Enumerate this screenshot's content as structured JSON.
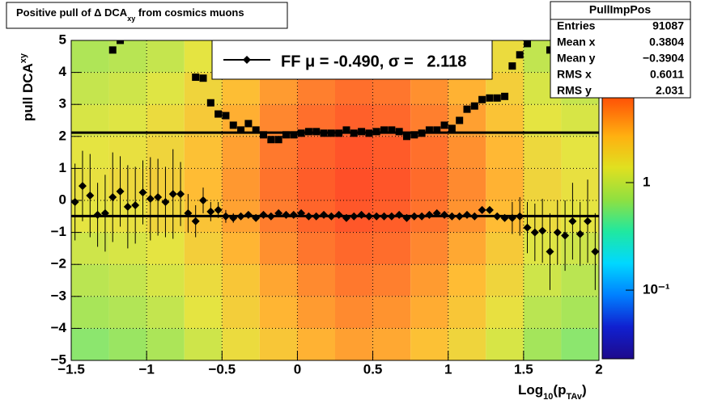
{
  "chart_data": {
    "type": "profile2d",
    "title": {
      "text": "Positive pull of Δ DCA",
      "sub": "xy",
      "rest": " from cosmics muons"
    },
    "x_label": {
      "a": "Log",
      "sub1": "10",
      "b": "(p",
      "sub2": "TAv",
      "c": ")"
    },
    "y_label": {
      "a": "pull DCA",
      "sub": "xy"
    },
    "xlim": [
      -1.5,
      2
    ],
    "ylim": [
      -5,
      5
    ],
    "xticks": [
      {
        "value": -1.5,
        "label": "−1.5"
      },
      {
        "value": -1,
        "label": "−1"
      },
      {
        "value": -0.5,
        "label": "−0.5"
      },
      0,
      0.5,
      1,
      1.5,
      2
    ],
    "yticks": [
      {
        "value": -5,
        "label": "−5"
      },
      {
        "value": -4,
        "label": "−4"
      },
      {
        "value": -3,
        "label": "−3"
      },
      {
        "value": -2,
        "label": "−2"
      },
      {
        "value": -1,
        "label": "−1"
      },
      0,
      1,
      2,
      3,
      4,
      5
    ],
    "grid": true,
    "heatmap": {
      "xbins": [
        -1.5,
        -1.25,
        -1,
        -0.75,
        -0.5,
        -0.25,
        0,
        0.25,
        0.5,
        0.75,
        1,
        1.25,
        1.5,
        1.75,
        2
      ],
      "ybins": [
        -5,
        -4,
        -3,
        -2,
        -1,
        0,
        1,
        2,
        3,
        4,
        5
      ],
      "z": [
        [
          0.6,
          0.66,
          0.78,
          1.1,
          1.6,
          2.3,
          3,
          3.6,
          3.3,
          2.5,
          1.8,
          1.2,
          0.72,
          0.6
        ],
        [
          0.75,
          0.83,
          0.98,
          1.4,
          2,
          2.9,
          3.8,
          4.5,
          4.1,
          3.2,
          2.3,
          1.5,
          0.9,
          0.75
        ],
        [
          0.9,
          1,
          1.2,
          1.6,
          2.3,
          3.4,
          4.5,
          5.4,
          5,
          3.8,
          2.7,
          1.8,
          1.1,
          0.9
        ],
        [
          1.1,
          1.2,
          1.4,
          2,
          2.9,
          4.2,
          5.5,
          6.6,
          6.1,
          4.6,
          3.3,
          2.2,
          1.3,
          1.1
        ],
        [
          1.4,
          1.5,
          1.8,
          2.4,
          3.5,
          5.1,
          6.8,
          8.1,
          7.4,
          5.7,
          4.1,
          2.7,
          1.6,
          1.4
        ],
        [
          1.5,
          1.7,
          2,
          2.7,
          3.9,
          5.7,
          7.5,
          9,
          8.3,
          6.3,
          4.5,
          3,
          1.8,
          1.5
        ],
        [
          1.4,
          1.5,
          1.8,
          2.5,
          3.6,
          5.3,
          7,
          8.4,
          7.7,
          5.9,
          4.2,
          2.8,
          1.7,
          1.4
        ],
        [
          1.2,
          1.3,
          1.6,
          2.2,
          3.1,
          4.6,
          6,
          7.2,
          6.6,
          5,
          3.6,
          2.4,
          1.4,
          1.2
        ],
        [
          1,
          1.1,
          1.3,
          1.8,
          2.6,
          3.8,
          5,
          6,
          5.5,
          4.2,
          3,
          2,
          1.2,
          1
        ],
        [
          0.8,
          0.88,
          1,
          1.4,
          2.1,
          3,
          4,
          4.8,
          4.4,
          3.4,
          2.4,
          1.6,
          0.96,
          0.8
        ]
      ],
      "zlim": [
        0.023,
        21
      ],
      "zlog": true,
      "zticks": [
        {
          "value": 0.1,
          "label": "10⁻¹"
        },
        1
      ],
      "palette": [
        "#1e0a8c",
        "#1020d0",
        "#0080ff",
        "#00d8ff",
        "#20e8a0",
        "#90e040",
        "#e0e020",
        "#ffb010",
        "#ff6008",
        "#ff2000",
        "#c00000"
      ]
    },
    "x": [
      -1.475,
      -1.425,
      -1.375,
      -1.325,
      -1.275,
      -1.225,
      -1.175,
      -1.125,
      -1.075,
      -1.025,
      -0.975,
      -0.925,
      -0.875,
      -0.825,
      -0.775,
      -0.725,
      -0.675,
      -0.625,
      -0.575,
      -0.525,
      -0.475,
      -0.425,
      -0.375,
      -0.325,
      -0.275,
      -0.225,
      -0.175,
      -0.125,
      -0.075,
      -0.025,
      0.025,
      0.075,
      0.125,
      0.175,
      0.225,
      0.275,
      0.325,
      0.375,
      0.425,
      0.475,
      0.525,
      0.575,
      0.625,
      0.675,
      0.725,
      0.775,
      0.825,
      0.875,
      0.925,
      0.975,
      1.025,
      1.075,
      1.125,
      1.175,
      1.225,
      1.275,
      1.325,
      1.375,
      1.425,
      1.475,
      1.525,
      1.575,
      1.625,
      1.675,
      1.725,
      1.775,
      1.825,
      1.875,
      1.925,
      1.975
    ],
    "mean": {
      "marker": "diamond",
      "color": "#000000",
      "values": [
        -0.05,
        0.45,
        0.15,
        -0.45,
        -0.4,
        0.1,
        0.28,
        -0.2,
        -0.15,
        0.25,
        0.05,
        0.1,
        -0.05,
        0.2,
        0.2,
        -0.4,
        -0.65,
        0,
        -0.35,
        -0.3,
        -0.5,
        -0.55,
        -0.5,
        -0.45,
        -0.55,
        -0.45,
        -0.5,
        -0.4,
        -0.45,
        -0.45,
        -0.4,
        -0.5,
        -0.5,
        -0.45,
        -0.5,
        -0.45,
        -0.55,
        -0.5,
        -0.45,
        -0.5,
        -0.5,
        -0.5,
        -0.5,
        -0.45,
        -0.55,
        -0.5,
        -0.5,
        -0.45,
        -0.4,
        -0.45,
        -0.5,
        -0.5,
        -0.45,
        -0.5,
        -0.3,
        -0.3,
        -0.5,
        -0.55,
        -0.55,
        -0.5,
        -0.85,
        -1,
        -0.95,
        -1.6,
        -1,
        -1.1,
        -0.65,
        -1.05,
        -0.65,
        -1.6
      ],
      "errors": [
        1.2,
        1.1,
        1.3,
        1.0,
        1.2,
        1.4,
        1.1,
        1.3,
        1.2,
        1.0,
        1.3,
        1.2,
        1.1,
        1.4,
        1.0,
        0.6,
        0.5,
        0.4,
        0.3,
        0.25,
        0.2,
        0.15,
        0.06,
        0.06,
        0.06,
        0.06,
        0.06,
        0.06,
        0.06,
        0.06,
        0.06,
        0.06,
        0.06,
        0.06,
        0.06,
        0.06,
        0.06,
        0.06,
        0.06,
        0.06,
        0.06,
        0.06,
        0.06,
        0.06,
        0.06,
        0.06,
        0.06,
        0.06,
        0.06,
        0.06,
        0.06,
        0.06,
        0.06,
        0.06,
        0.06,
        0.06,
        0.06,
        0.06,
        0.5,
        0.6,
        0.8,
        0.9,
        1.0,
        1.2,
        1.0,
        1.1,
        1.2,
        1.0,
        1.3,
        1.2
      ]
    },
    "sigma": {
      "marker": "square",
      "color": "#000000",
      "values": [
        null,
        null,
        null,
        null,
        null,
        4.7,
        5,
        null,
        null,
        null,
        null,
        null,
        null,
        null,
        null,
        null,
        3.85,
        3.82,
        3.05,
        2.7,
        2.65,
        2.35,
        2.2,
        2.4,
        2.2,
        2.05,
        1.9,
        1.9,
        2.05,
        2.05,
        2.1,
        2.15,
        2.15,
        2.1,
        2.1,
        2.1,
        2.2,
        2.1,
        2.15,
        2.1,
        2.15,
        2.2,
        2.2,
        2.15,
        2.0,
        2.05,
        2.1,
        2.2,
        2.2,
        2.35,
        2.25,
        2.5,
        2.85,
        2.95,
        3.15,
        3.2,
        3.2,
        3.25,
        4.2,
        4.55,
        4.9,
        null,
        null,
        4.7,
        null,
        null,
        null,
        null,
        null,
        null
      ]
    },
    "fit": {
      "mean": -0.49,
      "sigma": 2.118,
      "label": "FF μ = -0.490, σ =   2.118"
    },
    "stats": {
      "title": "PullImpPos",
      "rows": [
        [
          "Entries",
          91087
        ],
        [
          "Mean x",
          0.3804
        ],
        [
          "Mean y",
          "−0.3904"
        ],
        [
          "RMS x",
          0.6011
        ],
        [
          "RMS y",
          2.031
        ]
      ]
    }
  }
}
